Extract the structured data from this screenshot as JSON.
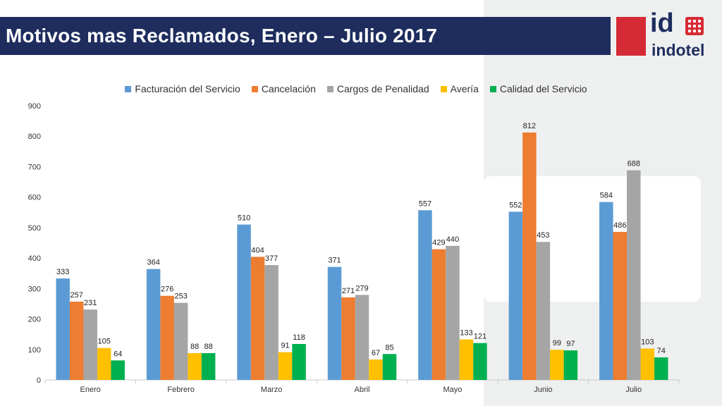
{
  "header": {
    "title": "Motivos mas Reclamados, Enero – Julio 2017"
  },
  "logo": {
    "mark": "id",
    "name": "indotel"
  },
  "colors": {
    "title_bar": "#1e2d5e",
    "brand_red": "#d52b35",
    "series": [
      "#5b9bd5",
      "#ed7d31",
      "#a5a5a5",
      "#ffc000",
      "#00b050"
    ]
  },
  "chart_data": {
    "type": "bar",
    "categories": [
      "Enero",
      "Febrero",
      "Marzo",
      "Abril",
      "Mayo",
      "Junio",
      "Julio"
    ],
    "series": [
      {
        "name": "Facturación del Servicio",
        "values": [
          333,
          364,
          510,
          371,
          557,
          552,
          584
        ]
      },
      {
        "name": "Cancelación",
        "values": [
          257,
          276,
          404,
          271,
          429,
          812,
          486
        ]
      },
      {
        "name": "Cargos de Penalidad",
        "values": [
          231,
          253,
          377,
          279,
          440,
          453,
          688
        ]
      },
      {
        "name": "Avería",
        "values": [
          105,
          88,
          91,
          67,
          133,
          99,
          103
        ]
      },
      {
        "name": "Calidad del Servicio",
        "values": [
          64,
          88,
          118,
          85,
          121,
          97,
          74
        ]
      }
    ],
    "ylim": [
      0,
      900
    ],
    "yticks": [
      0,
      100,
      200,
      300,
      400,
      500,
      600,
      700,
      800,
      900
    ],
    "legend": "top",
    "grid": false,
    "data_labels": true
  }
}
